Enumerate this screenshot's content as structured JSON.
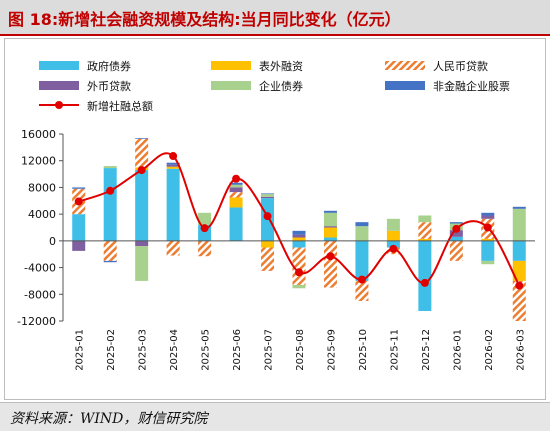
{
  "title": "图 18:新增社会融资规模及结构:当月同比变化（亿元）",
  "source": "资料来源：WIND，财信研究院",
  "colors": {
    "gov": "#3fbfe8",
    "offbalance": "#ffc000",
    "rmb": "#ed7d31",
    "fx": "#7f5fa0",
    "corp": "#a9d18e",
    "nonfin": "#4472c4",
    "total": "#e00000"
  },
  "chart_data": {
    "type": "bar",
    "stacked": true,
    "categories": [
      "2025-01",
      "2025-02",
      "2025-03",
      "2025-04",
      "2025-05",
      "2025-06",
      "2025-07",
      "2025-08",
      "2025-09",
      "2025-10",
      "2025-11",
      "2025-12",
      "2026-01",
      "2026-02",
      "2026-03"
    ],
    "ylim": [
      -12000,
      16000
    ],
    "yticks": [
      -12000,
      -8000,
      -4000,
      0,
      4000,
      8000,
      12000,
      16000
    ],
    "series": [
      {
        "name": "政府债券",
        "key": "gov",
        "values": [
          4000,
          10900,
          10600,
          10800,
          2400,
          5000,
          6400,
          -1000,
          500,
          -6000,
          -1000,
          -10500,
          600,
          -3000,
          -3000
        ]
      },
      {
        "name": "表外融资",
        "key": "offbalance",
        "values": [
          0,
          0,
          400,
          300,
          0,
          1500,
          -1000,
          500,
          1500,
          0,
          1500,
          300,
          0,
          300,
          -3000
        ]
      },
      {
        "name": "人民币贷款",
        "key": "rmb",
        "values": [
          3800,
          -3000,
          4300,
          -2200,
          -2300,
          800,
          -3500,
          -5600,
          -7000,
          -3000,
          -1000,
          2500,
          -3000,
          3000,
          -6000
        ]
      },
      {
        "name": "外币贷款",
        "key": "fx",
        "values": [
          -1500,
          0,
          -800,
          300,
          0,
          700,
          200,
          400,
          200,
          0,
          0,
          0,
          1000,
          500,
          0
        ]
      },
      {
        "name": "企业债券",
        "key": "corp",
        "values": [
          0,
          300,
          -5200,
          0,
          1800,
          400,
          400,
          -500,
          2000,
          2200,
          1800,
          1000,
          1000,
          -500,
          4800
        ]
      },
      {
        "name": "非金融企业股票",
        "key": "nonfin",
        "values": [
          200,
          -200,
          100,
          300,
          0,
          300,
          100,
          600,
          300,
          600,
          0,
          0,
          200,
          400,
          300
        ]
      }
    ],
    "line": {
      "name": "新增社融总额",
      "key": "total",
      "values": [
        5900,
        7500,
        10600,
        12700,
        1900,
        9300,
        3700,
        -4700,
        -2300,
        -5800,
        -1200,
        -6300,
        1800,
        2000,
        -6700
      ]
    }
  }
}
